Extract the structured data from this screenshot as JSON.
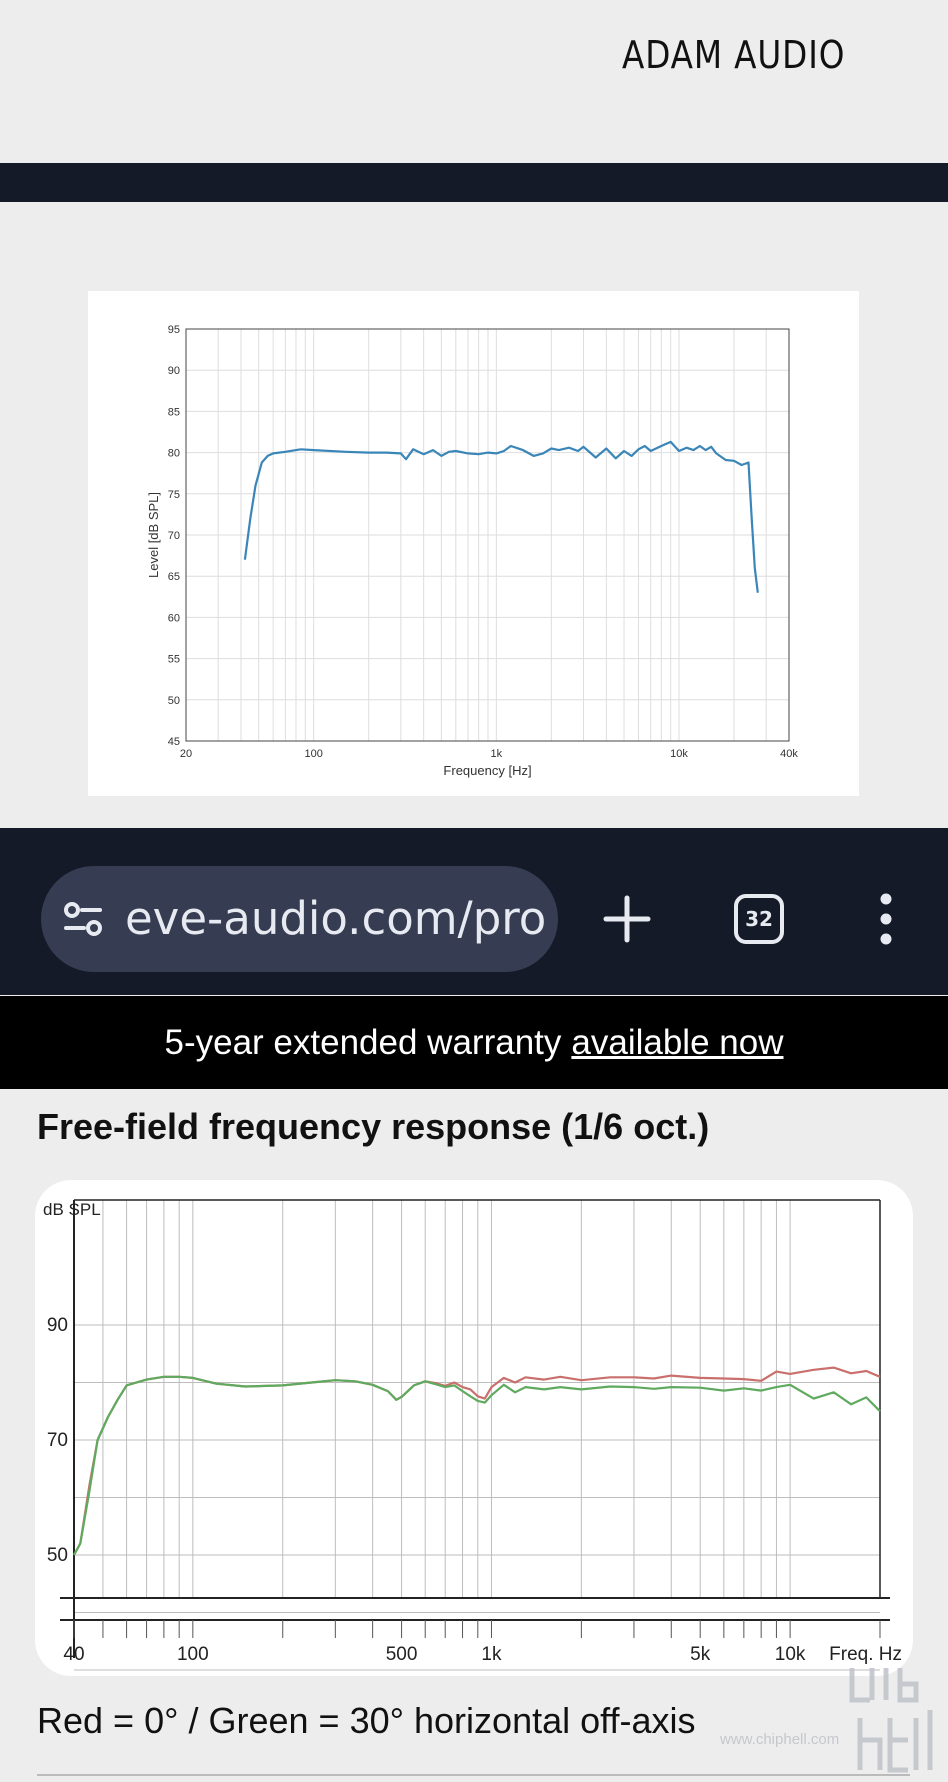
{
  "brand": {
    "name": "ADAM AUDIO"
  },
  "browser": {
    "url": "eve-audio.com/pro",
    "tab_count": "32",
    "icons": [
      "tune-icon",
      "plus-icon",
      "tabs-icon",
      "more-vert-icon"
    ]
  },
  "banner": {
    "text": "5-year extended warranty",
    "link": "available now"
  },
  "section": {
    "title": "Free-field frequency response (1/6 oct.)"
  },
  "legend": {
    "text": "Red = 0° / Green = 30° horizontal off-axis"
  },
  "watermark": {
    "site": "www.chiphell.com",
    "logo": "chip hell"
  },
  "colors": {
    "blue_curve": "#3a86b8",
    "red_curve": "#c9706d",
    "green_curve": "#5faa5f",
    "dark": "#141a28"
  },
  "chart_data": [
    {
      "type": "line",
      "title": "",
      "xlabel": "Frequency [Hz]",
      "ylabel": "Level [dB SPL]",
      "x_scale": "log",
      "xlim": [
        20,
        40000
      ],
      "ylim": [
        45,
        95
      ],
      "x_ticks": [
        {
          "v": 20,
          "label": "20"
        },
        {
          "v": 100,
          "label": "100"
        },
        {
          "v": 1000,
          "label": "1k"
        },
        {
          "v": 10000,
          "label": "10k"
        },
        {
          "v": 40000,
          "label": "40k"
        }
      ],
      "y_ticks": [
        45,
        50,
        55,
        60,
        65,
        70,
        75,
        80,
        85,
        90,
        95
      ],
      "grid": true,
      "series": [
        {
          "color": "#3a86b8",
          "x": [
            42,
            45,
            48,
            52,
            56,
            60,
            70,
            85,
            100,
            150,
            200,
            250,
            300,
            320,
            350,
            400,
            450,
            500,
            550,
            600,
            700,
            800,
            900,
            1000,
            1100,
            1200,
            1400,
            1600,
            1800,
            2000,
            2200,
            2500,
            2800,
            3000,
            3500,
            4000,
            4500,
            5000,
            5500,
            6000,
            6500,
            7000,
            8000,
            9000,
            10000,
            11000,
            12000,
            13000,
            14000,
            15000,
            16000,
            18000,
            20000,
            22000,
            24000,
            25000,
            26000,
            27000
          ],
          "y": [
            67,
            72,
            76,
            78.8,
            79.6,
            79.9,
            80.1,
            80.4,
            80.3,
            80.1,
            80,
            80,
            79.9,
            79.2,
            80.4,
            79.8,
            80.3,
            79.6,
            80.1,
            80.2,
            79.9,
            79.8,
            80,
            79.9,
            80.2,
            80.8,
            80.3,
            79.6,
            79.9,
            80.5,
            80.3,
            80.6,
            80.2,
            80.7,
            79.4,
            80.5,
            79.3,
            80.2,
            79.6,
            80.4,
            80.8,
            80.2,
            80.8,
            81.3,
            80.2,
            80.6,
            80.3,
            80.8,
            80.3,
            80.7,
            79.9,
            79.1,
            79,
            78.5,
            78.8,
            72,
            66,
            63
          ]
        }
      ]
    },
    {
      "type": "line",
      "title": "",
      "ylabel": "dB SPL",
      "xlabel": "Freq. Hz",
      "x_scale": "log",
      "xlim": [
        40,
        20000
      ],
      "ylim": [
        30,
        100
      ],
      "x_ticks": [
        {
          "v": 40,
          "label": "40"
        },
        {
          "v": 100,
          "label": "100"
        },
        {
          "v": 500,
          "label": "500"
        },
        {
          "v": 1000,
          "label": "1k"
        },
        {
          "v": 5000,
          "label": "5k"
        },
        {
          "v": 10000,
          "label": "10k"
        }
      ],
      "y_ticks": [
        {
          "v": 90,
          "label": "90"
        },
        {
          "v": 70,
          "label": "70"
        },
        {
          "v": 50,
          "label": "50"
        }
      ],
      "grid": true,
      "series": [
        {
          "color": "#c9706d",
          "x": [
            40,
            42,
            45,
            48,
            52,
            56,
            60,
            70,
            80,
            90,
            100,
            120,
            150,
            200,
            250,
            300,
            350,
            400,
            450,
            480,
            500,
            550,
            600,
            650,
            700,
            750,
            800,
            850,
            900,
            950,
            1000,
            1100,
            1200,
            1300,
            1500,
            1700,
            2000,
            2500,
            3000,
            3500,
            4000,
            5000,
            6000,
            7000,
            8000,
            9000,
            10000,
            12000,
            14000,
            16000,
            18000,
            20000
          ],
          "y": [
            50,
            52,
            62,
            70,
            74,
            77,
            79.5,
            80.5,
            81,
            81,
            80.8,
            79.8,
            79.3,
            79.5,
            80,
            80.4,
            80.2,
            79.6,
            78.5,
            77,
            77.5,
            79.5,
            80.2,
            79.9,
            79.4,
            80,
            79.2,
            78.8,
            77.6,
            77.2,
            79.2,
            80.8,
            80,
            80.9,
            80.5,
            81,
            80.4,
            80.9,
            80.9,
            80.7,
            81.2,
            80.8,
            80.7,
            80.6,
            80.3,
            81.9,
            81.5,
            82.2,
            82.6,
            81.6,
            82,
            81
          ]
        },
        {
          "color": "#5faa5f",
          "x": [
            40,
            42,
            45,
            48,
            52,
            56,
            60,
            70,
            80,
            90,
            100,
            120,
            150,
            200,
            250,
            300,
            350,
            400,
            450,
            480,
            500,
            550,
            600,
            650,
            700,
            750,
            800,
            850,
            900,
            950,
            1000,
            1100,
            1200,
            1300,
            1500,
            1700,
            2000,
            2500,
            3000,
            3500,
            4000,
            5000,
            6000,
            7000,
            8000,
            9000,
            10000,
            12000,
            14000,
            16000,
            18000,
            20000
          ],
          "y": [
            50,
            52,
            61,
            70,
            74,
            77,
            79.5,
            80.5,
            81,
            81,
            80.8,
            79.8,
            79.3,
            79.5,
            80,
            80.4,
            80.2,
            79.6,
            78.5,
            77,
            77.5,
            79.5,
            80.2,
            79.7,
            79.2,
            79.5,
            78.5,
            77.6,
            76.8,
            76.5,
            77.8,
            79.6,
            78.3,
            79.2,
            78.8,
            79.2,
            78.8,
            79.3,
            79.2,
            78.9,
            79.2,
            79.1,
            78.6,
            79,
            78.6,
            79.2,
            79.6,
            77.2,
            78.3,
            76.2,
            77.4,
            75
          ]
        }
      ]
    }
  ]
}
